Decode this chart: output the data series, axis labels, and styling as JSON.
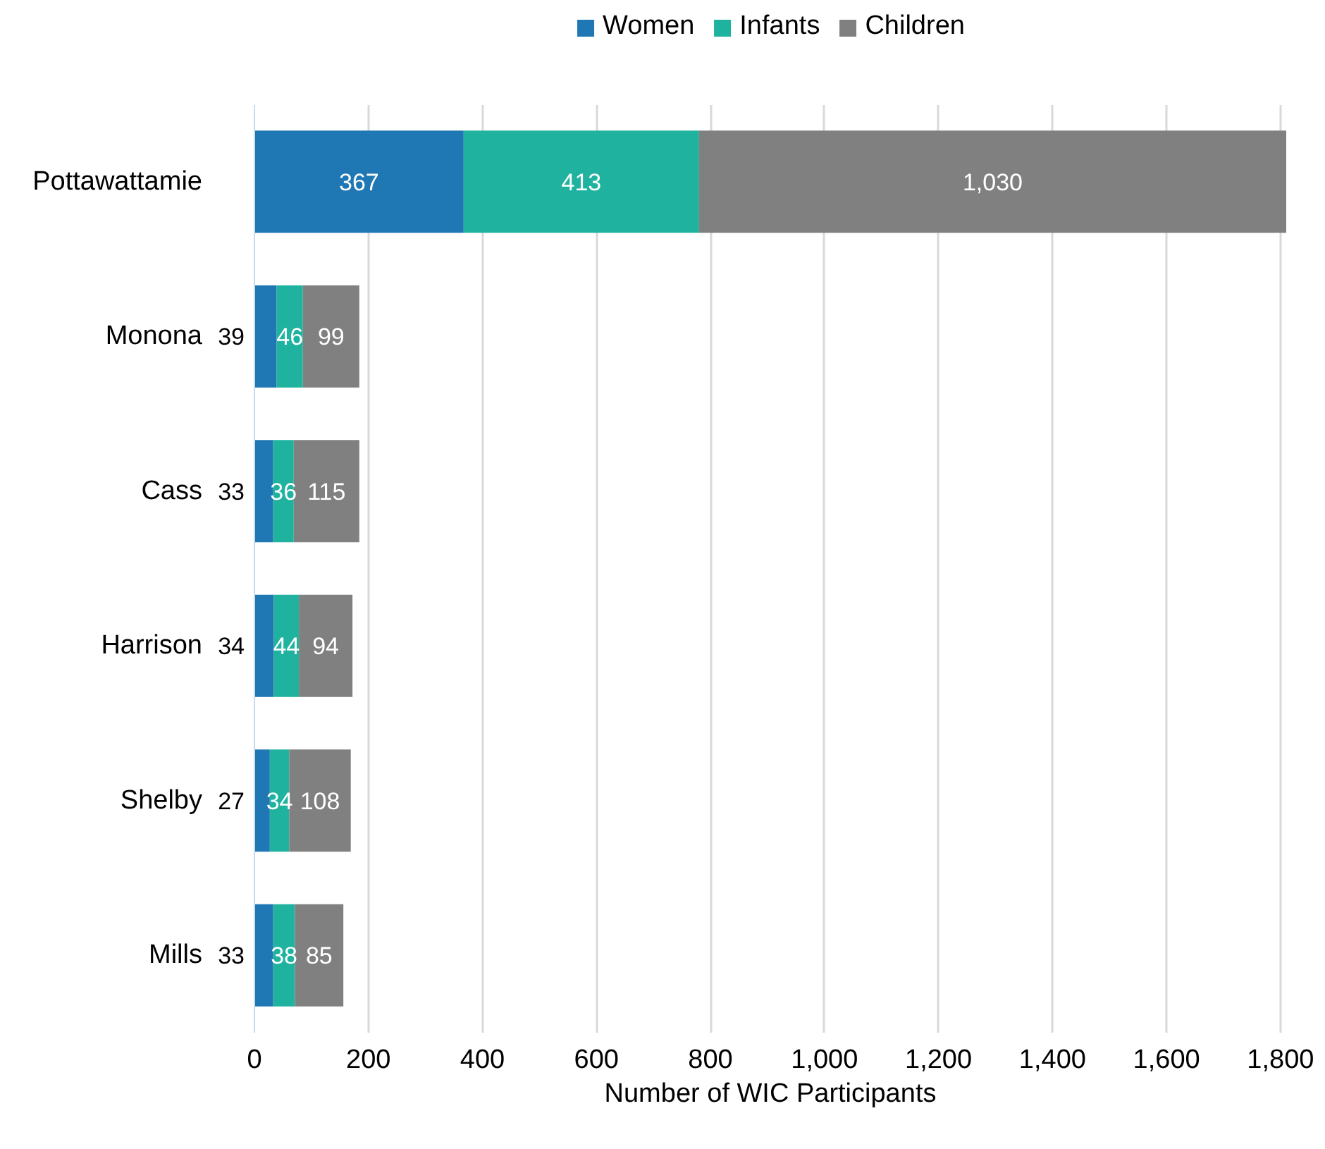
{
  "chart_data": {
    "type": "bar",
    "orientation": "horizontal",
    "stacked": true,
    "xlabel": "Number of WIC Participants",
    "categories": [
      "Pottawattamie",
      "Monona",
      "Cass",
      "Harrison",
      "Shelby",
      "Mills"
    ],
    "series": [
      {
        "name": "Women",
        "color": "#1f77b4",
        "values": [
          367,
          39,
          33,
          34,
          27,
          33
        ],
        "value_labels": [
          "367",
          "39",
          "33",
          "34",
          "27",
          "33"
        ]
      },
      {
        "name": "Infants",
        "color": "#1fb39f",
        "values": [
          413,
          46,
          36,
          44,
          34,
          38
        ],
        "value_labels": [
          "413",
          "46",
          "36",
          "44",
          "34",
          "38"
        ]
      },
      {
        "name": "Children",
        "color": "#808080",
        "values": [
          1030,
          99,
          115,
          94,
          108,
          85
        ],
        "value_labels": [
          "1,030",
          "99",
          "115",
          "94",
          "108",
          "85"
        ]
      }
    ],
    "xlim": [
      0,
      1810
    ],
    "xticks": [
      0,
      {
        "value": 200,
        "label": "200"
      },
      {
        "value": 400,
        "label": "400"
      },
      {
        "value": 600,
        "label": "600"
      },
      {
        "value": 800,
        "label": "800"
      },
      {
        "value": 1000,
        "label": "1,000"
      },
      {
        "value": 1200,
        "label": "1,200"
      },
      {
        "value": 1400,
        "label": "1,400"
      },
      {
        "value": 1600,
        "label": "1,600"
      },
      {
        "value": 1800,
        "label": "1,800"
      }
    ],
    "grid": "x",
    "legend": "top"
  }
}
